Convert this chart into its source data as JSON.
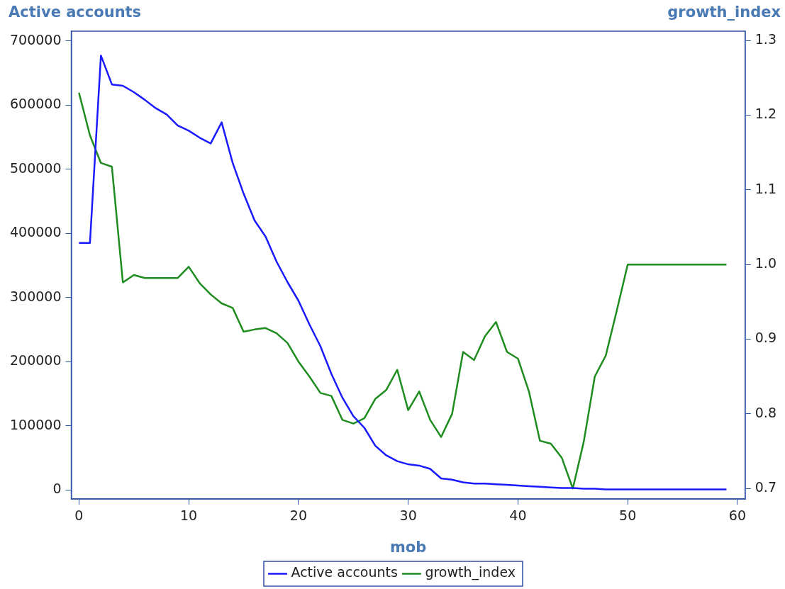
{
  "chart_data": {
    "type": "line",
    "xlabel": "mob",
    "ylabel": "Active accounts",
    "y2label": "growth_index",
    "xlim": [
      -0.7,
      60.7
    ],
    "xticks": [
      0,
      10,
      20,
      30,
      40,
      50,
      60
    ],
    "ylim": [
      -14000,
      715000
    ],
    "yticks": [
      0,
      100000,
      200000,
      300000,
      400000,
      500000,
      600000,
      700000
    ],
    "y2lim": [
      0.686,
      1.3125
    ],
    "y2ticks": [
      0.7,
      0.8,
      0.9,
      {
        "value": 1,
        "label": "1.0"
      },
      1.1,
      1.2,
      1.3
    ],
    "x": [
      0,
      1,
      2,
      3,
      4,
      5,
      6,
      7,
      8,
      9,
      10,
      11,
      12,
      13,
      14,
      15,
      16,
      17,
      18,
      19,
      20,
      21,
      22,
      23,
      24,
      25,
      26,
      27,
      28,
      29,
      30,
      31,
      32,
      33,
      34,
      35,
      36,
      37,
      38,
      39,
      40,
      41,
      42,
      43,
      44,
      45,
      46,
      47,
      48,
      49,
      50,
      51,
      52,
      53,
      54,
      55,
      56,
      57,
      58,
      59
    ],
    "series": [
      {
        "name": "Active accounts",
        "color": "#1a1aff",
        "values": [
          385000,
          385000,
          677000,
          632000,
          630000,
          620000,
          608000,
          595000,
          585000,
          568000,
          560000,
          549000,
          540000,
          573000,
          510000,
          462000,
          420000,
          395000,
          356000,
          324000,
          295000,
          258000,
          224000,
          181000,
          144000,
          115000,
          97000,
          69000,
          54000,
          45000,
          40000,
          38000,
          33000,
          18000,
          16000,
          12000,
          10000,
          10000,
          9000,
          8000,
          7000,
          6000,
          5000,
          4000,
          3000,
          3000,
          2000,
          2000,
          1000,
          1000,
          1000,
          1000,
          1000,
          1000,
          1000,
          1000,
          1000,
          1000,
          1000,
          1000
        ]
      },
      {
        "name": "growth_index",
        "color": "#1e8c1e",
        "axis": "y2",
        "values": [
          1.23,
          1.173,
          1.136,
          1.131,
          0.976,
          0.986,
          0.982,
          0.982,
          0.982,
          0.982,
          0.997,
          0.975,
          0.96,
          0.948,
          0.942,
          0.91,
          0.913,
          0.915,
          0.908,
          0.895,
          0.87,
          0.85,
          0.828,
          0.824,
          0.792,
          0.787,
          0.794,
          0.82,
          0.832,
          0.859,
          0.805,
          0.83,
          0.792,
          0.769,
          0.8,
          0.883,
          0.872,
          0.904,
          0.923,
          0.883,
          0.874,
          0.83,
          0.764,
          0.76,
          0.741,
          0.7,
          0.763,
          0.85,
          0.878,
          0.938,
          1.0,
          1.0,
          1.0,
          1.0,
          1.0,
          1.0,
          1.0,
          1.0,
          1.0,
          1.0
        ]
      }
    ],
    "legend": "bottom",
    "grid": false,
    "marker": "none",
    "line_style": "solid"
  }
}
